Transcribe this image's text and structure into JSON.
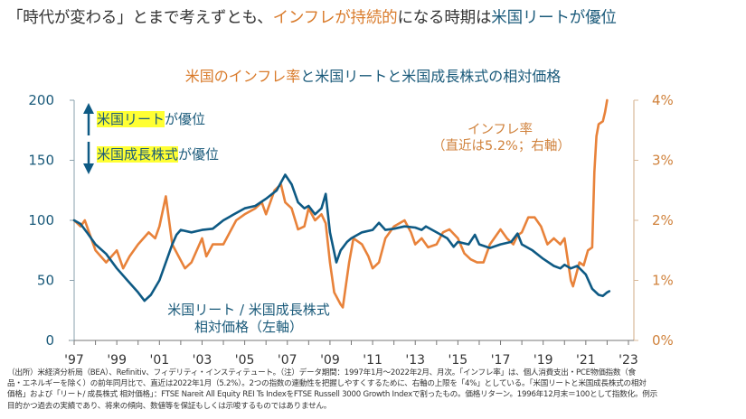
{
  "headline": {
    "part1": "「時代が変わる」とまで考えずとも、",
    "part2_orange": "インフレが持続的",
    "part3": "になる時期は",
    "part4_blue": "米国リートが優位"
  },
  "chart_title": {
    "part1_orange": "米国のインフレ率",
    "part2": "と米国リートと米国成長株式の相対価格"
  },
  "legend": {
    "up_highlight": "米国リート",
    "up_suffix": "が優位",
    "down_highlight": "米国成長株式",
    "down_suffix": "が優位",
    "up_icon": "arrow-up-icon",
    "down_icon": "arrow-down-icon"
  },
  "annotations": {
    "inflation_line1": "インフレ率",
    "inflation_line2": "（直近は5.2%；右軸）",
    "relative_line1": "米国リート / 米国成長株式",
    "relative_line2": "相対価格（左軸）"
  },
  "colors": {
    "blue_series": "#0e5a84",
    "orange_series": "#e8823a",
    "highlight": "#ffff33"
  },
  "chart_data": {
    "type": "line",
    "title": "米国のインフレ率と米国リートと米国成長株式の相対価格",
    "xlabel": "",
    "ylabel_left": "米国リート / 米国成長株式 相対価格（左軸）",
    "ylabel_right": "インフレ率（右軸）",
    "x_range": [
      1997,
      2023
    ],
    "x_ticks": [
      "'97",
      "'99",
      "'01",
      "'03",
      "'05",
      "'07",
      "'09",
      "'11",
      "'13",
      "'15",
      "'17",
      "'19",
      "'21",
      "'23"
    ],
    "y_left_range": [
      0,
      200
    ],
    "y_left_ticks": [
      "0",
      "50",
      "100",
      "150",
      "200"
    ],
    "y_right_range": [
      0,
      4
    ],
    "y_right_ticks": [
      "0%",
      "1%",
      "2%",
      "3%",
      "4%"
    ],
    "grid": false,
    "series": [
      {
        "name": "米国リート / 米国成長株式 相対価格（左軸）",
        "axis": "left",
        "x": [
          1997.0,
          1997.3,
          1997.6,
          1998.0,
          1998.5,
          1999.0,
          1999.5,
          2000.0,
          2000.3,
          2000.6,
          2001.0,
          2001.3,
          2001.6,
          2001.8,
          2002.0,
          2002.5,
          2003.0,
          2003.5,
          2004.0,
          2004.5,
          2005.0,
          2005.5,
          2006.0,
          2006.5,
          2006.9,
          2007.2,
          2007.5,
          2007.8,
          2008.0,
          2008.3,
          2008.6,
          2008.8,
          2009.0,
          2009.3,
          2009.5,
          2009.8,
          2010.0,
          2010.5,
          2011.0,
          2011.3,
          2011.6,
          2012.0,
          2012.5,
          2013.0,
          2013.3,
          2013.5,
          2014.0,
          2014.5,
          2014.8,
          2015.0,
          2015.5,
          2015.8,
          2016.0,
          2016.5,
          2017.0,
          2017.5,
          2017.8,
          2018.0,
          2018.5,
          2019.0,
          2019.5,
          2019.8,
          2020.0,
          2020.3,
          2020.6,
          2021.0,
          2021.3,
          2021.6,
          2021.8,
          2022.0,
          2022.1
        ],
        "values": [
          100,
          97,
          90,
          80,
          72,
          60,
          50,
          40,
          33,
          38,
          50,
          65,
          80,
          88,
          92,
          90,
          92,
          93,
          100,
          105,
          110,
          112,
          118,
          125,
          138,
          130,
          115,
          110,
          112,
          105,
          110,
          122,
          90,
          65,
          75,
          82,
          85,
          90,
          92,
          98,
          92,
          93,
          95,
          94,
          92,
          95,
          90,
          85,
          78,
          82,
          80,
          88,
          80,
          77,
          80,
          82,
          89,
          80,
          75,
          68,
          62,
          60,
          63,
          60,
          62,
          55,
          43,
          38,
          37,
          40,
          41
        ]
      },
      {
        "name": "インフレ率（右軸）",
        "axis": "right",
        "x": [
          1997.0,
          1997.3,
          1997.5,
          1998.0,
          1998.5,
          1999.0,
          1999.3,
          1999.6,
          2000.0,
          2000.5,
          2000.8,
          2001.0,
          2001.3,
          2001.6,
          2001.9,
          2002.2,
          2002.5,
          2003.0,
          2003.2,
          2003.5,
          2004.0,
          2004.3,
          2004.6,
          2005.0,
          2005.5,
          2005.8,
          2006.0,
          2006.4,
          2006.7,
          2006.9,
          2007.2,
          2007.5,
          2007.8,
          2008.0,
          2008.3,
          2008.6,
          2008.8,
          2009.0,
          2009.2,
          2009.5,
          2009.6,
          2009.9,
          2010.1,
          2010.5,
          2010.8,
          2011.0,
          2011.3,
          2011.6,
          2012.0,
          2012.5,
          2012.8,
          2013.0,
          2013.3,
          2013.6,
          2014.0,
          2014.3,
          2014.6,
          2015.0,
          2015.3,
          2015.6,
          2015.9,
          2016.2,
          2016.5,
          2016.9,
          2017.0,
          2017.3,
          2017.6,
          2017.8,
          2018.0,
          2018.3,
          2018.6,
          2018.9,
          2019.2,
          2019.5,
          2019.8,
          2020.0,
          2020.3,
          2020.4,
          2020.7,
          2020.9,
          2021.1,
          2021.3,
          2021.4,
          2021.5,
          2021.6,
          2021.8,
          2021.9,
          2022.0
        ],
        "values": [
          2.0,
          1.9,
          2.0,
          1.5,
          1.3,
          1.5,
          1.2,
          1.4,
          1.6,
          1.8,
          1.7,
          1.9,
          2.4,
          1.6,
          1.4,
          1.2,
          1.3,
          1.7,
          1.4,
          1.6,
          1.6,
          1.8,
          2.0,
          2.1,
          2.2,
          2.3,
          2.1,
          2.5,
          2.6,
          2.3,
          2.2,
          1.85,
          1.9,
          2.2,
          2.0,
          2.1,
          1.95,
          1.3,
          0.8,
          0.6,
          0.55,
          1.3,
          1.7,
          1.6,
          1.4,
          1.2,
          1.3,
          1.7,
          1.9,
          2.0,
          1.8,
          1.6,
          1.7,
          1.55,
          1.6,
          1.8,
          1.85,
          1.7,
          1.45,
          1.35,
          1.3,
          1.3,
          1.6,
          1.8,
          1.85,
          1.7,
          1.6,
          1.75,
          1.8,
          2.05,
          2.05,
          1.9,
          1.6,
          1.7,
          1.6,
          1.7,
          1.0,
          0.9,
          1.3,
          1.25,
          1.5,
          1.55,
          2.8,
          3.4,
          3.6,
          3.65,
          3.8,
          4.0
        ]
      }
    ],
    "latest_inflation": "5.2%"
  },
  "footnote": {
    "line1": "（出所）米経済分析局（BEA）、Refinitiv、フィデリティ・インスティテュート。（注）データ期間：1997年1月～2022年2月、月次。「インフレ率」は、個人消費支出・PCE物価指数（食",
    "line2": "品・エネルギーを除く）の前年同月比で、直近は2022年1月（5.2%）。2つの指数の連動性を把握しやすくするために、右軸の上限を「4%」としている。「米国リートと米国成長株式の相対",
    "line3": "価格」および「リート/ 成長株式 相対価格」：FTSE Nareit All Equity REI Ts IndexをFTSE Russell 3000 Growth Indexで割ったもの。価格リターン。1996年12月末＝100として指数化。例示",
    "line4": "目的かつ過去の実績であり、将来の傾向、数値等を保証もしくは示唆するものではありません。"
  }
}
